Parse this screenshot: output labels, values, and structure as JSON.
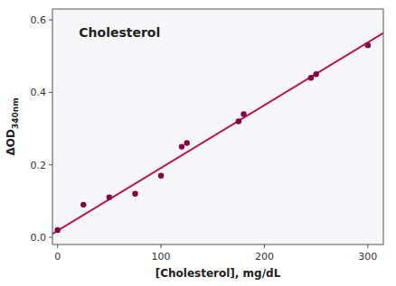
{
  "chart_data": {
    "type": "scatter",
    "title": "Cholesterol",
    "xlabel": "[Cholesterol], mg/dL",
    "ylabel": "ΔOD340nm",
    "xlim": [
      -5,
      315
    ],
    "ylim": [
      -0.02,
      0.63
    ],
    "xticks": [
      0,
      100,
      200,
      300
    ],
    "yticks": [
      {
        "value": 0.0,
        "label": "0.0"
      },
      0.2,
      0.4,
      0.6
    ],
    "grid": false,
    "series": [
      {
        "type": "scatter",
        "color": "#880040",
        "marker": "circle",
        "x": [
          0,
          25,
          50,
          75,
          100,
          120,
          125,
          175,
          180,
          245,
          250,
          300
        ],
        "values": [
          0.02,
          0.09,
          0.11,
          0.12,
          0.17,
          0.25,
          0.26,
          0.32,
          0.34,
          0.44,
          0.45,
          0.53
        ]
      },
      {
        "type": "line",
        "color": "#BB1155",
        "line_style": "solid",
        "x": [
          -5,
          315
        ],
        "values": [
          0.009335,
          0.563895
        ]
      }
    ]
  }
}
